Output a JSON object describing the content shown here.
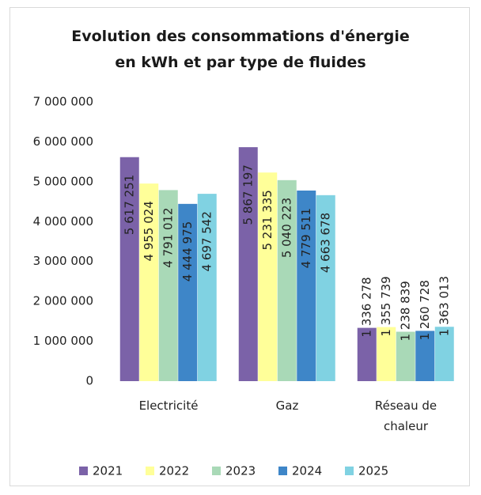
{
  "chart_data": {
    "type": "bar",
    "title": "Evolution des consommations d'énergie en kWh et par type de fluides",
    "categories": [
      "Electricité",
      "Gaz",
      "Réseau de chaleur"
    ],
    "series": [
      {
        "name": "2021",
        "color": "#7b62a8",
        "values": [
          5617251,
          5867197,
          1336278
        ],
        "value_labels": [
          "5 617 251",
          "5 867 197",
          "1 336 278"
        ]
      },
      {
        "name": "2022",
        "color": "#ffff99",
        "values": [
          4955024,
          5231335,
          1355739
        ],
        "value_labels": [
          "4 955 024",
          "5 231 335",
          "1 355 739"
        ]
      },
      {
        "name": "2023",
        "color": "#a9d9b7",
        "values": [
          4791012,
          5040223,
          1238839
        ],
        "value_labels": [
          "4 791 012",
          "5 040 223",
          "1 238 839"
        ]
      },
      {
        "name": "2024",
        "color": "#3e86c8",
        "values": [
          4444975,
          4779511,
          1260728
        ],
        "value_labels": [
          "4 444 975",
          "4 779 511",
          "1 260 728"
        ]
      },
      {
        "name": "2025",
        "color": "#80d2e2",
        "values": [
          4697542,
          4663678,
          1363013
        ],
        "value_labels": [
          "4 697 542",
          "4 663 678",
          "1 363 013"
        ]
      }
    ],
    "ylim": [
      0,
      7000000
    ],
    "yticks": [
      0,
      {
        "value": 1000000,
        "label": "1 000 000"
      },
      {
        "value": 2000000,
        "label": "2 000 000"
      },
      {
        "value": 3000000,
        "label": "3 000 000"
      },
      {
        "value": 4000000,
        "label": "4 000 000"
      },
      {
        "value": 5000000,
        "label": "5 000 000"
      },
      {
        "value": 6000000,
        "label": "6 000 000"
      },
      {
        "value": 7000000,
        "label": "7 000 000"
      }
    ],
    "legend": "bottom"
  }
}
